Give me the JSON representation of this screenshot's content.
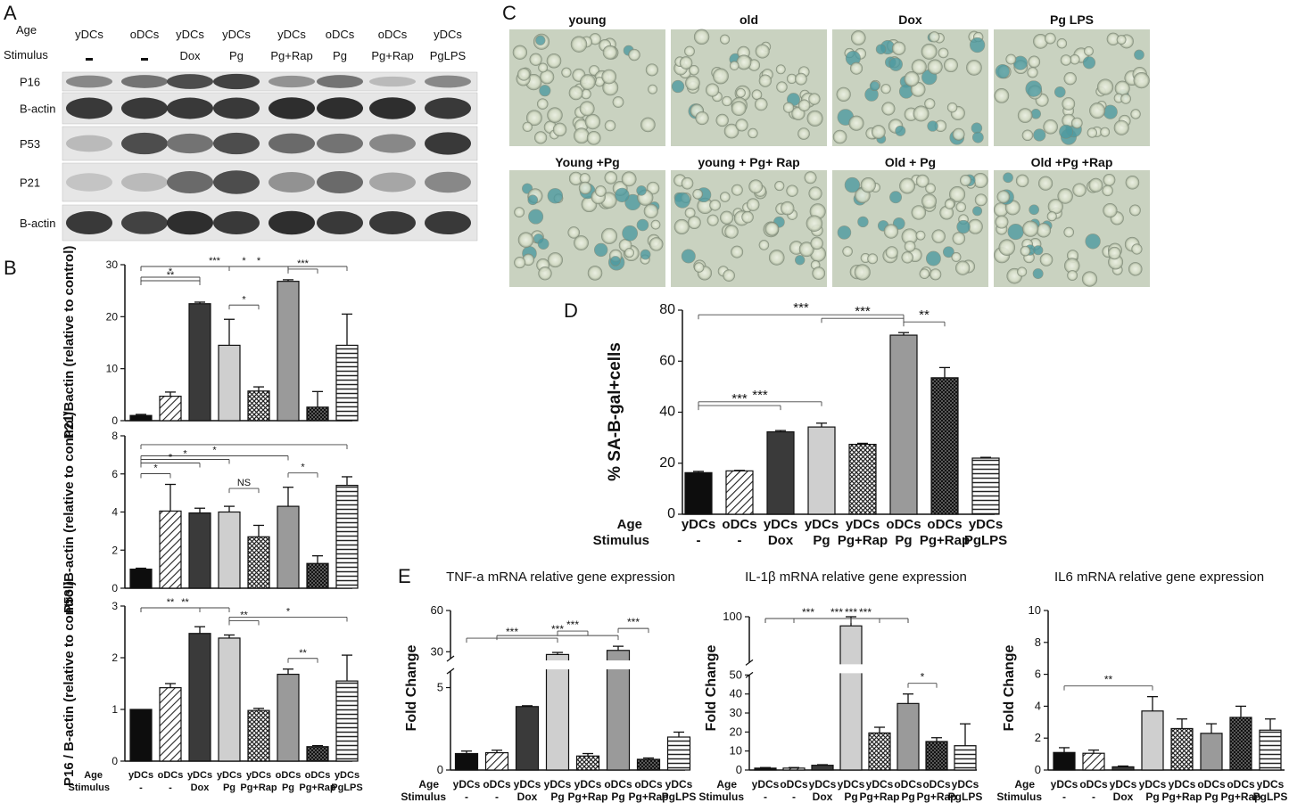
{
  "panel_letters": [
    "A",
    "B",
    "C",
    "D",
    "E"
  ],
  "conditions": {
    "age": [
      "yDCs",
      "oDCs",
      "yDCs",
      "yDCs",
      "yDCs",
      "oDCs",
      "oDCs",
      "yDCs"
    ],
    "stimulus": [
      "-",
      "-",
      "Dox",
      "Pg",
      "Pg+Rap",
      "Pg",
      "Pg+Rap",
      "PgLPS"
    ]
  },
  "colors": {
    "black": "#0d0d0d",
    "white": "#ffffff",
    "dark_gray": "#3a3a3a",
    "light_gray": "#cfcfcf",
    "mid_gray": "#9a9a9a",
    "text": "#111111"
  },
  "fills": [
    "solid-black",
    "diagonal-hatch",
    "solid-dark-gray",
    "solid-light-gray",
    "crosshatch",
    "solid-mid-gray",
    "dense-crosshatch",
    "horizontal-lines"
  ],
  "panel_a": {
    "header_labels": {
      "age": "Age",
      "stimulus": "Stimulus"
    },
    "stimulus_row": [
      "-",
      "-",
      "Dox",
      "Pg",
      "Pg+Rap",
      "Pg",
      "Pg+Rap",
      "PgLPS"
    ],
    "blots": [
      {
        "label": "P16",
        "intensity": [
          0.45,
          0.55,
          0.75,
          0.8,
          0.4,
          0.55,
          0.2,
          0.45
        ]
      },
      {
        "label": "B-actin",
        "intensity": [
          0.85,
          0.85,
          0.85,
          0.85,
          0.9,
          0.9,
          0.9,
          0.85
        ]
      },
      {
        "label": "P53",
        "intensity": [
          0.2,
          0.75,
          0.55,
          0.75,
          0.6,
          0.55,
          0.45,
          0.85
        ]
      },
      {
        "label": "P21",
        "intensity": [
          0.15,
          0.2,
          0.6,
          0.75,
          0.4,
          0.6,
          0.3,
          0.45
        ]
      },
      {
        "label": "B-actin",
        "intensity": [
          0.85,
          0.8,
          0.9,
          0.85,
          0.9,
          0.85,
          0.85,
          0.85
        ]
      }
    ]
  },
  "panel_c": {
    "top_labels": [
      "young",
      "old",
      "Dox",
      "Pg LPS"
    ],
    "bottom_labels": [
      "Young +Pg",
      "young + Pg+ Rap",
      "Old + Pg",
      "Old +Pg +Rap"
    ],
    "stain_level": [
      0.05,
      0.1,
      0.35,
      0.3,
      0.6,
      0.25,
      0.5,
      0.3
    ]
  },
  "chart_data": [
    {
      "id": "B-P21",
      "type": "bar",
      "ylabel": "P21/Bactin (relative to control)",
      "ylim": [
        0,
        30
      ],
      "yticks": [
        0,
        10,
        20,
        30
      ],
      "values": [
        1.0,
        4.7,
        22.5,
        14.5,
        5.7,
        26.8,
        2.6,
        14.5
      ],
      "errors": [
        0.2,
        0.8,
        0.3,
        5.0,
        0.8,
        0.3,
        3.0,
        6.0
      ],
      "significance": [
        {
          "from": 0,
          "to": 7,
          "label": "*"
        },
        {
          "from": 0,
          "to": 5,
          "label": "***"
        },
        {
          "from": 0,
          "to": 2,
          "label": "*"
        },
        {
          "from": 0,
          "to": 2,
          "label": "**"
        },
        {
          "from": 3,
          "to": 5,
          "label": "*"
        },
        {
          "from": 3,
          "to": 4,
          "label": "*"
        },
        {
          "from": 5,
          "to": 6,
          "label": "***"
        }
      ]
    },
    {
      "id": "B-P53",
      "type": "bar",
      "ylabel": "P53 /B-actin (relative to control)",
      "ylim": [
        0,
        8
      ],
      "yticks": [
        0,
        2,
        4,
        6,
        8
      ],
      "values": [
        1.0,
        4.05,
        3.95,
        4.0,
        2.7,
        4.3,
        1.3,
        5.4
      ],
      "errors": [
        0.05,
        1.4,
        0.25,
        0.3,
        0.6,
        1.0,
        0.4,
        0.45
      ],
      "significance": [
        {
          "from": 0,
          "to": 7,
          "label": ""
        },
        {
          "from": 0,
          "to": 5,
          "label": "*"
        },
        {
          "from": 0,
          "to": 3,
          "label": "*"
        },
        {
          "from": 0,
          "to": 2,
          "label": "*"
        },
        {
          "from": 3,
          "to": 4,
          "label": "NS"
        },
        {
          "from": 5,
          "to": 6,
          "label": "*"
        },
        {
          "from": 0,
          "to": 1,
          "label": "*"
        }
      ]
    },
    {
      "id": "B-P16",
      "type": "bar",
      "ylabel": "P16 / B-actin (relative to control)",
      "ylim": [
        0,
        3
      ],
      "yticks": [
        0,
        1,
        2,
        3
      ],
      "values": [
        1.0,
        1.42,
        2.47,
        2.38,
        0.98,
        1.68,
        0.28,
        1.55
      ],
      "errors": [
        0.0,
        0.08,
        0.13,
        0.06,
        0.04,
        0.1,
        0.02,
        0.5
      ],
      "significance": [
        {
          "from": 0,
          "to": 3,
          "label": "**"
        },
        {
          "from": 0,
          "to": 2,
          "label": "**"
        },
        {
          "from": 3,
          "to": 7,
          "label": "*"
        },
        {
          "from": 3,
          "to": 4,
          "label": "**"
        },
        {
          "from": 5,
          "to": 6,
          "label": "**"
        }
      ]
    },
    {
      "id": "D",
      "type": "bar",
      "ylabel": "% SA-B-gal+cells",
      "ylim": [
        0,
        80
      ],
      "yticks": [
        0,
        20,
        40,
        60,
        80
      ],
      "values": [
        16.3,
        17.0,
        32.3,
        34.2,
        27.4,
        70.2,
        53.5,
        22.0
      ],
      "errors": [
        0.5,
        0.2,
        0.5,
        1.5,
        0.4,
        1.0,
        4.0,
        0.3
      ],
      "significance": [
        {
          "from": 0,
          "to": 2,
          "label": "***"
        },
        {
          "from": 0,
          "to": 3,
          "label": "***"
        },
        {
          "from": 0,
          "to": 5,
          "label": "***"
        },
        {
          "from": 3,
          "to": 5,
          "label": "***"
        },
        {
          "from": 5,
          "to": 6,
          "label": "**"
        }
      ]
    },
    {
      "id": "E-TNF",
      "type": "bar",
      "title": "TNF-a mRNA relative gene expression",
      "ylabel": "Fold Change",
      "broken_axis": {
        "lower_ylim": [
          0,
          6
        ],
        "upper_ylim": [
          25,
          60
        ],
        "lower_ticks": [
          0,
          5
        ],
        "upper_ticks": [
          30,
          60
        ]
      },
      "values": [
        1.0,
        1.05,
        3.85,
        28.0,
        0.85,
        31.0,
        0.65,
        2.0
      ],
      "errors": [
        0.15,
        0.15,
        0.05,
        1.5,
        0.15,
        3.0,
        0.08,
        0.3
      ],
      "significance": [
        {
          "from": 3,
          "to": 4,
          "label": "***"
        },
        {
          "from": 5,
          "to": 6,
          "label": "***"
        },
        {
          "from": 0,
          "to": 3,
          "label": "***"
        },
        {
          "from": 1,
          "to": 5,
          "label": "***"
        }
      ]
    },
    {
      "id": "E-IL1b",
      "type": "bar",
      "title": "IL-1β mRNA relative gene expression",
      "ylabel": "Fold Change",
      "broken_axis": {
        "lower_ylim": [
          0,
          50
        ],
        "upper_ylim": [
          90,
          100
        ],
        "lower_ticks": [
          0,
          10,
          20,
          30,
          40,
          50
        ],
        "upper_ticks": [
          100
        ]
      },
      "values": [
        1.0,
        1.0,
        2.5,
        98.0,
        19.5,
        35.0,
        15.0,
        12.8
      ],
      "errors": [
        0.3,
        0.3,
        0.3,
        2.0,
        3.0,
        5.0,
        2.0,
        11.5
      ],
      "significance": [
        {
          "from": 3,
          "to": 4,
          "label": "***"
        },
        {
          "from": 0,
          "to": 5,
          "label": "***"
        },
        {
          "from": 0,
          "to": 3,
          "label": "***"
        },
        {
          "from": 1,
          "to": 5,
          "label": "***"
        },
        {
          "from": 5,
          "to": 6,
          "label": "*"
        }
      ]
    },
    {
      "id": "E-IL6",
      "type": "bar",
      "title": "IL6 mRNA relative gene expression",
      "ylabel": "Fold Change",
      "ylim": [
        0,
        10
      ],
      "yticks": [
        0,
        2,
        4,
        6,
        8,
        10
      ],
      "values": [
        1.1,
        1.05,
        0.2,
        3.7,
        2.6,
        2.3,
        3.3,
        2.5
      ],
      "errors": [
        0.3,
        0.2,
        0.05,
        0.9,
        0.6,
        0.6,
        0.7,
        0.7
      ],
      "significance": [
        {
          "from": 0,
          "to": 3,
          "label": "**"
        }
      ]
    }
  ]
}
